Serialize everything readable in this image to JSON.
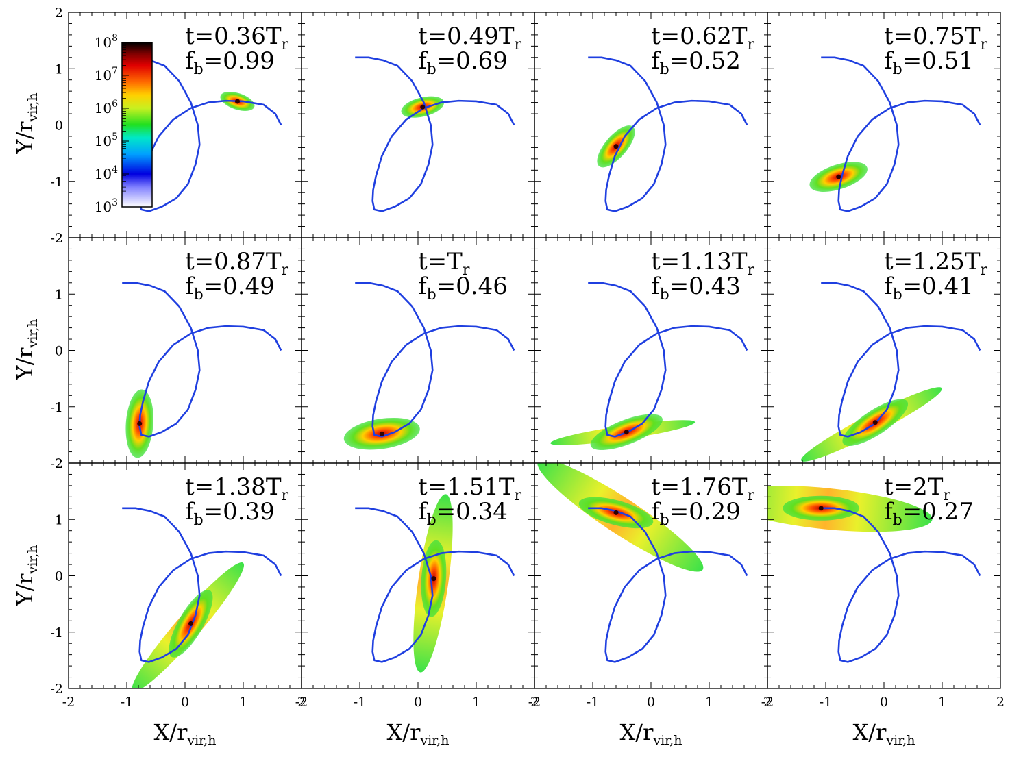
{
  "chart_data": {
    "type": "scatter",
    "layout": "3x4 grid of panels with shared axes",
    "xlabel_main": "X/r",
    "xlabel_sub": "vir,h",
    "ylabel_main": "Y/r",
    "ylabel_sub": "vir,h",
    "xlim": [
      -2,
      2
    ],
    "ylim": [
      -2,
      2
    ],
    "x_ticks": [
      "-2",
      "-1",
      "0",
      "1",
      "2"
    ],
    "y_ticks": [
      "-2",
      "-1",
      "0",
      "1",
      "2"
    ],
    "colorbar": {
      "scale": "log",
      "colormap": "rainbow (white-blue-cyan-green-yellow-orange-red-black)",
      "tick_base": "10",
      "tick_exponents": [
        "3",
        "4",
        "5",
        "6",
        "7",
        "8"
      ]
    },
    "orbit_color": "#1f3fe0",
    "orbit_path": [
      [
        1.65,
        0.0
      ],
      [
        1.55,
        0.2
      ],
      [
        1.35,
        0.36
      ],
      [
        1.0,
        0.42
      ],
      [
        0.7,
        0.43
      ],
      [
        0.4,
        0.4
      ],
      [
        0.1,
        0.3
      ],
      [
        -0.2,
        0.1
      ],
      [
        -0.45,
        -0.2
      ],
      [
        -0.62,
        -0.55
      ],
      [
        -0.72,
        -0.9
      ],
      [
        -0.77,
        -1.15
      ],
      [
        -0.78,
        -1.35
      ],
      [
        -0.75,
        -1.5
      ],
      [
        -0.62,
        -1.53
      ],
      [
        -0.4,
        -1.45
      ],
      [
        -0.15,
        -1.3
      ],
      [
        0.05,
        -1.05
      ],
      [
        0.18,
        -0.7
      ],
      [
        0.25,
        -0.35
      ],
      [
        0.22,
        0.0
      ],
      [
        0.1,
        0.4
      ],
      [
        -0.1,
        0.78
      ],
      [
        -0.35,
        1.05
      ],
      [
        -0.6,
        1.15
      ],
      [
        -0.85,
        1.2
      ],
      [
        -1.08,
        1.2
      ]
    ],
    "panels": [
      {
        "t_prefix": "t=",
        "t_value": "0.36T",
        "t_sub": "r",
        "fb_prefix": "f",
        "fb_sub": "b",
        "fb_value": "=0.99",
        "orbit_end_index": 2,
        "satellite": [
          0.9,
          0.42
        ]
      },
      {
        "t_prefix": "t=",
        "t_value": "0.49T",
        "t_sub": "r",
        "fb_prefix": "f",
        "fb_sub": "b",
        "fb_value": "=0.69",
        "orbit_end_index": 6,
        "satellite": [
          0.08,
          0.32
        ]
      },
      {
        "t_prefix": "t=",
        "t_value": "0.62T",
        "t_sub": "r",
        "fb_prefix": "f",
        "fb_sub": "b",
        "fb_value": "=0.52",
        "orbit_end_index": 9,
        "satellite": [
          -0.6,
          -0.38
        ]
      },
      {
        "t_prefix": "t=",
        "t_value": "0.75T",
        "t_sub": "r",
        "fb_prefix": "f",
        "fb_sub": "b",
        "fb_value": "=0.51",
        "orbit_end_index": 11,
        "satellite": [
          -0.78,
          -0.92
        ]
      },
      {
        "t_prefix": "t=",
        "t_value": "0.87T",
        "t_sub": "r",
        "fb_prefix": "f",
        "fb_sub": "b",
        "fb_value": "=0.49",
        "orbit_end_index": 12,
        "satellite": [
          -0.78,
          -1.3
        ]
      },
      {
        "t_prefix": "t=",
        "t_value": "T",
        "t_sub": "r",
        "fb_prefix": "f",
        "fb_sub": "b",
        "fb_value": "=0.46",
        "orbit_end_index": 14,
        "satellite": [
          -0.62,
          -1.48
        ]
      },
      {
        "t_prefix": "t=",
        "t_value": "1.13T",
        "t_sub": "r",
        "fb_prefix": "f",
        "fb_sub": "b",
        "fb_value": "=0.43",
        "orbit_end_index": 15,
        "satellite": [
          -0.42,
          -1.45
        ]
      },
      {
        "t_prefix": "t=",
        "t_value": "1.25T",
        "t_sub": "r",
        "fb_prefix": "f",
        "fb_sub": "b",
        "fb_value": "=0.41",
        "orbit_end_index": 16,
        "satellite": [
          -0.15,
          -1.28
        ]
      },
      {
        "t_prefix": "t=",
        "t_value": "1.38T",
        "t_sub": "r",
        "fb_prefix": "f",
        "fb_sub": "b",
        "fb_value": "=0.39",
        "orbit_end_index": 17,
        "satellite": [
          0.1,
          -0.85
        ]
      },
      {
        "t_prefix": "t=",
        "t_value": "1.51T",
        "t_sub": "r",
        "fb_prefix": "f",
        "fb_sub": "b",
        "fb_value": "=0.34",
        "orbit_end_index": 20,
        "satellite": [
          0.27,
          -0.05
        ]
      },
      {
        "t_prefix": "t=",
        "t_value": "1.76T",
        "t_sub": "r",
        "fb_prefix": "f",
        "fb_sub": "b",
        "fb_value": "=0.29",
        "orbit_end_index": 24,
        "satellite": [
          -0.6,
          1.12
        ]
      },
      {
        "t_prefix": "t=",
        "t_value": "2T",
        "t_sub": "r",
        "fb_prefix": "f",
        "fb_sub": "b",
        "fb_value": "=0.27",
        "orbit_end_index": 26,
        "satellite": [
          -1.08,
          1.2
        ]
      }
    ]
  }
}
